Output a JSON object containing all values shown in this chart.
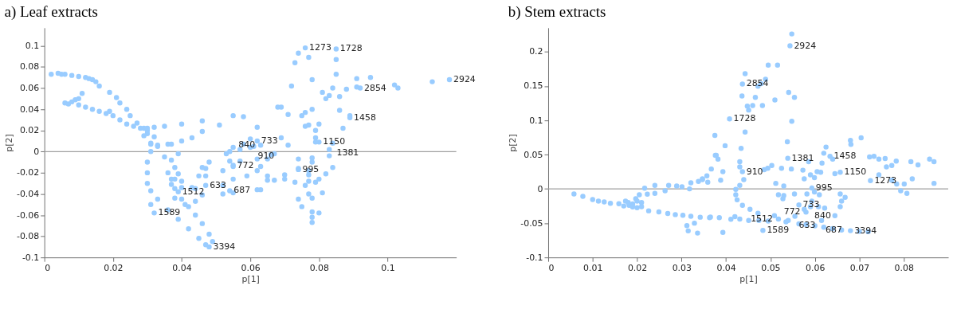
{
  "chart_data": [
    {
      "type": "scatter",
      "title": "a)    Leaf extracts",
      "xlabel": "p[1]",
      "ylabel": "p[2]",
      "color": "#99ccff",
      "marker": "circle",
      "grid": false,
      "xlim": [
        0,
        0.12
      ],
      "ylim": [
        -0.1,
        0.117
      ],
      "xticks": [
        0,
        0.02,
        0.04,
        0.06,
        0.08,
        0.1
      ],
      "yticks": [
        -0.1,
        -0.08,
        -0.06,
        -0.04,
        -0.02,
        0,
        0.02,
        0.04,
        0.06,
        0.08,
        0.1
      ],
      "ref_lines": [
        {
          "axis": "y",
          "value": 0,
          "color": "#a0a0a0"
        }
      ],
      "x": [
        0.002,
        0.004,
        0.005,
        0.006,
        0.008,
        0.01,
        0.012,
        0.013,
        0.014,
        0.015,
        0.016,
        0.019,
        0.021,
        0.022,
        0.024,
        0.025,
        0.027,
        0.029,
        0.03,
        0.006,
        0.007,
        0.008,
        0.009,
        0.01,
        0.011,
        0.01,
        0.012,
        0.014,
        0.016,
        0.018,
        0.019,
        0.02,
        0.022,
        0.024,
        0.026,
        0.028,
        0.03,
        0.031,
        0.031,
        0.03,
        0.03,
        0.03,
        0.031,
        0.033,
        0.036,
        0.039,
        0.042,
        0.045,
        0.047,
        0.048,
        0.049,
        0.048,
        0.046,
        0.044,
        0.042,
        0.04,
        0.038,
        0.036,
        0.035,
        0.033,
        0.032,
        0.031,
        0.039,
        0.047,
        0.054,
        0.055,
        0.074,
        0.061,
        0.063,
        0.062,
        0.08,
        0.084,
        0.089,
        0.092,
        0.118,
        0.076,
        0.085,
        0.074,
        0.073,
        0.077,
        0.085,
        0.085,
        0.078,
        0.072,
        0.084,
        0.081,
        0.082,
        0.083,
        0.086,
        0.088,
        0.091,
        0.091,
        0.095,
        0.102,
        0.103,
        0.113,
        0.068,
        0.069,
        0.071,
        0.075,
        0.076,
        0.078,
        0.086,
        0.089,
        0.076,
        0.077,
        0.08,
        0.087,
        0.079,
        0.079,
        0.079,
        0.083,
        0.083,
        0.084,
        0.082,
        0.078,
        0.078,
        0.077,
        0.077,
        0.077,
        0.076,
        0.079,
        0.08,
        0.081,
        0.077,
        0.078,
        0.074,
        0.075,
        0.078,
        0.078,
        0.078,
        0.08,
        0.074,
        0.074,
        0.073,
        0.07,
        0.07,
        0.067,
        0.065,
        0.065,
        0.063,
        0.063,
        0.062,
        0.062,
        0.065,
        0.066,
        0.067,
        0.069,
        0.071,
        0.062,
        0.058,
        0.055,
        0.051,
        0.06,
        0.058,
        0.06,
        0.055,
        0.054,
        0.053,
        0.054,
        0.055,
        0.057,
        0.052,
        0.055,
        0.059,
        0.055,
        0.052,
        0.062,
        0.057,
        0.032,
        0.03,
        0.029,
        0.032,
        0.035,
        0.04,
        0.046,
        0.046,
        0.043,
        0.04,
        0.037,
        0.036,
        0.031,
        0.033,
        0.039,
        0.037,
        0.038,
        0.039,
        0.037,
        0.038,
        0.037,
        0.04,
        0.04,
        0.038,
        0.041,
        0.044,
        0.043,
        0.044,
        0.047,
        0.046,
        0.048,
        0.047,
        0.045,
        0.046,
        0.052
      ],
      "values": [
        0.073,
        0.074,
        0.073,
        0.073,
        0.072,
        0.071,
        0.07,
        0.069,
        0.068,
        0.066,
        0.062,
        0.056,
        0.051,
        0.046,
        0.04,
        0.034,
        0.027,
        0.022,
        0.017,
        0.046,
        0.045,
        0.047,
        0.049,
        0.05,
        0.055,
        0.044,
        0.042,
        0.04,
        0.038,
        0.036,
        0.038,
        0.034,
        0.03,
        0.026,
        0.024,
        0.022,
        0.02,
        0.008,
        0.0,
        -0.01,
        -0.02,
        -0.03,
        -0.037,
        -0.045,
        -0.055,
        -0.064,
        -0.073,
        -0.082,
        -0.088,
        -0.09,
        -0.085,
        -0.078,
        -0.068,
        -0.06,
        -0.052,
        -0.045,
        -0.035,
        -0.02,
        -0.005,
        0.006,
        -0.058,
        -0.05,
        -0.038,
        -0.032,
        -0.037,
        -0.013,
        -0.017,
        0.005,
        0.006,
        0.01,
        0.009,
        0.008,
        0.032,
        0.06,
        0.068,
        0.098,
        0.097,
        0.093,
        0.084,
        0.089,
        0.087,
        0.073,
        0.068,
        0.062,
        0.06,
        0.056,
        0.05,
        0.053,
        0.052,
        0.059,
        0.069,
        0.061,
        0.07,
        0.063,
        0.06,
        0.066,
        0.042,
        0.042,
        0.035,
        0.034,
        0.037,
        0.04,
        0.039,
        0.034,
        0.024,
        0.025,
        0.026,
        0.022,
        0.02,
        0.013,
        0.009,
        0.002,
        -0.004,
        -0.015,
        -0.021,
        -0.006,
        -0.01,
        -0.018,
        -0.022,
        -0.028,
        -0.032,
        -0.029,
        -0.026,
        -0.039,
        -0.04,
        -0.044,
        -0.045,
        -0.052,
        -0.057,
        -0.062,
        -0.067,
        -0.058,
        -0.007,
        -0.016,
        -0.029,
        -0.022,
        -0.026,
        -0.027,
        -0.023,
        -0.027,
        -0.036,
        -0.014,
        -0.018,
        -0.007,
        -0.007,
        -0.003,
        -0.002,
        0.013,
        0.006,
        0.023,
        0.033,
        0.034,
        0.025,
        0.012,
        0.007,
        0.004,
        0.004,
        0.0,
        -0.002,
        -0.009,
        -0.014,
        -0.009,
        -0.018,
        -0.026,
        -0.023,
        -0.039,
        -0.04,
        -0.036,
        0.002,
        0.023,
        0.022,
        0.015,
        0.014,
        0.024,
        0.026,
        0.019,
        0.029,
        0.013,
        0.01,
        0.007,
        0.007,
        0.007,
        0.005,
        -0.002,
        -0.008,
        -0.015,
        -0.021,
        -0.026,
        -0.026,
        -0.031,
        -0.028,
        -0.034,
        -0.044,
        -0.05,
        -0.047,
        -0.034,
        -0.035,
        -0.016,
        -0.015,
        -0.01,
        -0.023,
        -0.023,
        -0.041,
        -0.032
      ],
      "annotations": [
        {
          "text": "1273",
          "x": 0.076,
          "y": 0.098
        },
        {
          "text": "1728",
          "x": 0.085,
          "y": 0.097
        },
        {
          "text": "2924",
          "x": 0.118,
          "y": 0.068
        },
        {
          "text": "2854",
          "x": 0.092,
          "y": 0.06
        },
        {
          "text": "1458",
          "x": 0.089,
          "y": 0.032
        },
        {
          "text": "733",
          "x": 0.062,
          "y": 0.01
        },
        {
          "text": "910",
          "x": 0.061,
          "y": 0.005
        },
        {
          "text": "840",
          "x": 0.063,
          "y": 0.006
        },
        {
          "text": "1150",
          "x": 0.08,
          "y": 0.009
        },
        {
          "text": "1381",
          "x": 0.084,
          "y": 0.008
        },
        {
          "text": "772",
          "x": 0.055,
          "y": -0.013
        },
        {
          "text": "995",
          "x": 0.074,
          "y": -0.017
        },
        {
          "text": "633",
          "x": 0.047,
          "y": -0.032
        },
        {
          "text": "687",
          "x": 0.054,
          "y": -0.037
        },
        {
          "text": "1512",
          "x": 0.039,
          "y": -0.038
        },
        {
          "text": "1589",
          "x": 0.032,
          "y": -0.058
        },
        {
          "text": "3394",
          "x": 0.048,
          "y": -0.09
        }
      ]
    },
    {
      "type": "scatter",
      "title": "b)    Stem extracts",
      "xlabel": "p[1]",
      "ylabel": "p[2]",
      "color": "#99ccff",
      "marker": "circle",
      "grid": false,
      "xlim": [
        0,
        0.09
      ],
      "ylim": [
        -0.1,
        0.235
      ],
      "xticks": [
        0,
        0.01,
        0.02,
        0.03,
        0.04,
        0.05,
        0.06,
        0.07,
        0.08
      ],
      "yticks": [
        -0.1,
        -0.05,
        0,
        0.05,
        0.1,
        0.15,
        0.2
      ],
      "ref_lines": [
        {
          "axis": "y",
          "value": 0,
          "color": "#a0a0a0"
        }
      ],
      "x": [
        0.0058,
        0.0078,
        0.01,
        0.0113,
        0.0126,
        0.014,
        0.0159,
        0.0174,
        0.0182,
        0.019,
        0.02,
        0.021,
        0.0197,
        0.0205,
        0.0217,
        0.024,
        0.0223,
        0.024,
        0.0263,
        0.0271,
        0.0289,
        0.0301,
        0.0318,
        0.0321,
        0.0338,
        0.0347,
        0.0357,
        0.0367,
        0.0376,
        0.0375,
        0.018,
        0.019,
        0.02,
        0.021,
        0.017,
        0.0226,
        0.0249,
        0.0269,
        0.0286,
        0.0303,
        0.0321,
        0.0342,
        0.0363,
        0.0312,
        0.0315,
        0.0329,
        0.0336,
        0.0365,
        0.0385,
        0.0393,
        0.0411,
        0.042,
        0.0431,
        0.0451,
        0.0474,
        0.0483,
        0.0495,
        0.0509,
        0.0535,
        0.0564,
        0.058,
        0.06,
        0.062,
        0.064,
        0.066,
        0.068,
        0.07,
        0.072,
        0.0422,
        0.0422,
        0.0425,
        0.0437,
        0.0454,
        0.0472,
        0.0518,
        0.054,
        0.0431,
        0.044,
        0.0431,
        0.0431,
        0.0434,
        0.0443,
        0.0408,
        0.0448,
        0.046,
        0.0451,
        0.0466,
        0.0472,
        0.0479,
        0.0489,
        0.0436,
        0.0437,
        0.0443,
        0.0495,
        0.0516,
        0.0482,
        0.051,
        0.0541,
        0.0554,
        0.0548,
        0.0544,
        0.0548,
        0.0538,
        0.0539,
        0.0547,
        0.0398,
        0.0378,
        0.0382,
        0.0393,
        0.0388,
        0.0359,
        0.0347,
        0.0486,
        0.0494,
        0.0503,
        0.0512,
        0.0525,
        0.053,
        0.0518,
        0.053,
        0.0528,
        0.0554,
        0.0573,
        0.0576,
        0.0586,
        0.059,
        0.0599,
        0.0605,
        0.0613,
        0.0616,
        0.062,
        0.0625,
        0.064,
        0.0645,
        0.0657,
        0.068,
        0.0681,
        0.0704,
        0.0582,
        0.0593,
        0.0599,
        0.061,
        0.0593,
        0.0608,
        0.0622,
        0.0645,
        0.0657,
        0.066,
        0.0668,
        0.0657,
        0.0576,
        0.059,
        0.0723,
        0.0733,
        0.0744,
        0.0758,
        0.0773,
        0.0783,
        0.0761,
        0.0744,
        0.0773,
        0.0784,
        0.0801,
        0.0793,
        0.0807,
        0.0816,
        0.0832,
        0.0819,
        0.0858,
        0.0868,
        0.0868,
        0.0437,
        0.0634,
        0.0725,
        0.0564,
        0.058,
        0.0555,
        0.0615
      ],
      "values": [
        -0.0074,
        -0.011,
        -0.0155,
        -0.018,
        -0.019,
        -0.021,
        -0.0217,
        -0.018,
        -0.024,
        -0.0263,
        -0.0275,
        -0.026,
        -0.0143,
        -0.0085,
        0.001,
        0.005,
        -0.0078,
        -0.0066,
        -0.0028,
        0.005,
        0.0042,
        0.003,
        0.0,
        0.0088,
        0.0108,
        0.0146,
        0.019,
        0.029,
        0.049,
        0.078,
        -0.02,
        -0.022,
        -0.018,
        -0.02,
        -0.025,
        -0.032,
        -0.0336,
        -0.036,
        -0.0375,
        -0.0386,
        -0.04,
        -0.0413,
        -0.042,
        -0.0537,
        -0.0613,
        -0.05,
        -0.0645,
        -0.041,
        -0.042,
        -0.0636,
        -0.0444,
        -0.0405,
        -0.044,
        -0.046,
        -0.046,
        -0.0606,
        -0.047,
        -0.039,
        -0.048,
        -0.051,
        -0.052,
        -0.054,
        -0.056,
        -0.058,
        -0.06,
        -0.061,
        -0.062,
        -0.0625,
        -0.0008,
        -0.0086,
        -0.016,
        -0.024,
        -0.0297,
        -0.0355,
        -0.044,
        -0.046,
        0.005,
        0.0134,
        0.032,
        0.0397,
        0.059,
        0.083,
        0.102,
        0.1207,
        0.1215,
        0.115,
        0.1334,
        0.1496,
        0.1534,
        0.16,
        0.1354,
        0.153,
        0.168,
        0.1805,
        0.1805,
        0.1215,
        0.1296,
        0.1407,
        0.1334,
        0.0987,
        0.2086,
        0.226,
        0.0686,
        0.0447,
        0.029,
        0.063,
        0.049,
        0.0435,
        0.025,
        0.0127,
        0.0096,
        0.0134,
        0.028,
        0.03,
        0.034,
        0.0081,
        0.03,
        0.0042,
        -0.0085,
        -0.0097,
        -0.0143,
        -0.0074,
        0.0273,
        0.0146,
        0.0397,
        0.0204,
        0.0165,
        0.025,
        0.0243,
        0.0377,
        0.052,
        0.061,
        0.0435,
        0.0223,
        0.0243,
        0.0706,
        0.0648,
        0.0744,
        -0.0074,
        0.0012,
        -0.0046,
        -0.0085,
        -0.018,
        -0.026,
        -0.028,
        -0.039,
        -0.026,
        -0.018,
        -0.0124,
        -0.0074,
        -0.0297,
        -0.026,
        0.0466,
        0.0474,
        0.0435,
        0.0443,
        0.034,
        0.0405,
        0.032,
        0.0204,
        0.0127,
        0.007,
        0.007,
        -0.0028,
        -0.0066,
        0.0397,
        0.035,
        0.0146,
        0.0435,
        0.0397,
        0.0081,
        0.025,
        0.0474,
        0.012,
        -0.0235,
        -0.034,
        -0.04,
        -0.046
      ],
      "annotations": [
        {
          "text": "2924",
          "x": 0.0544,
          "y": 0.2086
        },
        {
          "text": "2854",
          "x": 0.0437,
          "y": 0.153
        },
        {
          "text": "1728",
          "x": 0.0408,
          "y": 0.102
        },
        {
          "text": "1458",
          "x": 0.0634,
          "y": 0.0474
        },
        {
          "text": "1381",
          "x": 0.0539,
          "y": 0.0447
        },
        {
          "text": "910",
          "x": 0.0437,
          "y": 0.025
        },
        {
          "text": "1150",
          "x": 0.0657,
          "y": 0.0243
        },
        {
          "text": "1273",
          "x": 0.0725,
          "y": 0.012
        },
        {
          "text": "995",
          "x": 0.0593,
          "y": 0.0012
        },
        {
          "text": "733",
          "x": 0.0564,
          "y": -0.0235
        },
        {
          "text": "840",
          "x": 0.059,
          "y": -0.026
        },
        {
          "text": "772",
          "x": 0.058,
          "y": -0.034
        },
        {
          "text": "633",
          "x": 0.0555,
          "y": -0.04
        },
        {
          "text": "687",
          "x": 0.0615,
          "y": -0.046
        },
        {
          "text": "1512",
          "x": 0.0518,
          "y": -0.044
        },
        {
          "text": "1589",
          "x": 0.0483,
          "y": -0.0606
        },
        {
          "text": "3394",
          "x": 0.068,
          "y": -0.061
        }
      ]
    }
  ]
}
